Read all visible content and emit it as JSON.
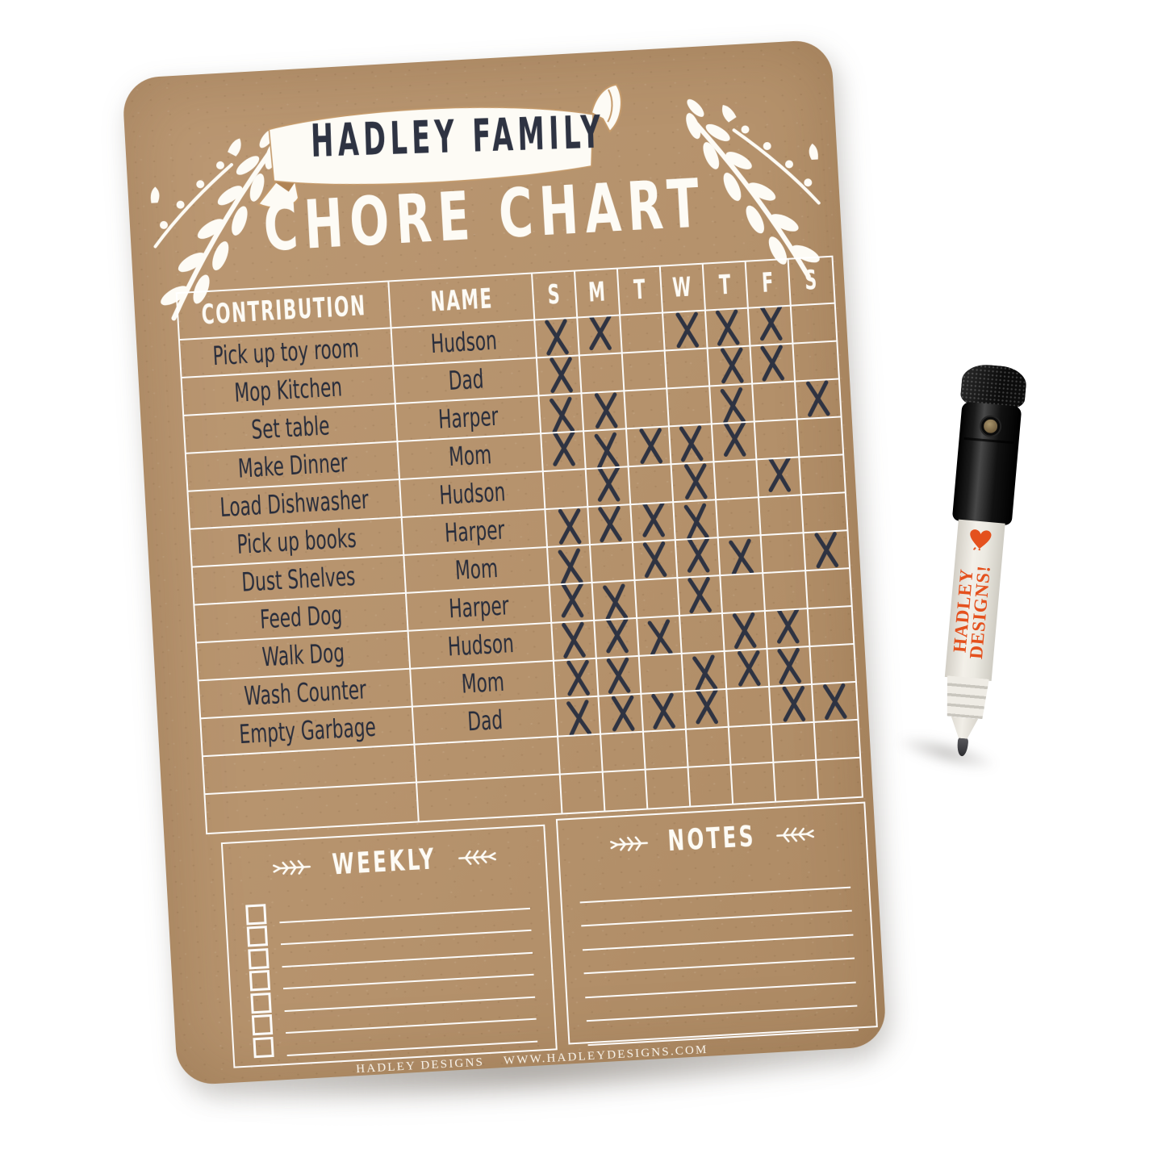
{
  "banner": {
    "family_name": "HADLEY FAMILY"
  },
  "title": "CHORE CHART",
  "table": {
    "contribution_header": "CONTRIBUTION",
    "name_header": "NAME",
    "day_headers": [
      "S",
      "M",
      "T",
      "W",
      "T",
      "F",
      "S"
    ],
    "rows": [
      {
        "contribution": "Pick up toy room",
        "name": "Hudson",
        "marks": [
          1,
          1,
          0,
          1,
          1,
          1,
          0
        ]
      },
      {
        "contribution": "Mop Kitchen",
        "name": "Dad",
        "marks": [
          1,
          0,
          0,
          0,
          1,
          1,
          0
        ]
      },
      {
        "contribution": "Set table",
        "name": "Harper",
        "marks": [
          1,
          1,
          0,
          0,
          1,
          0,
          1
        ]
      },
      {
        "contribution": "Make Dinner",
        "name": "Mom",
        "marks": [
          1,
          1,
          1,
          1,
          1,
          0,
          0
        ]
      },
      {
        "contribution": "Load Dishwasher",
        "name": "Hudson",
        "marks": [
          0,
          1,
          0,
          1,
          0,
          1,
          0
        ]
      },
      {
        "contribution": "Pick up books",
        "name": "Harper",
        "marks": [
          1,
          1,
          1,
          1,
          0,
          0,
          0
        ]
      },
      {
        "contribution": "Dust Shelves",
        "name": "Mom",
        "marks": [
          1,
          0,
          1,
          1,
          1,
          0,
          1
        ]
      },
      {
        "contribution": "Feed Dog",
        "name": "Harper",
        "marks": [
          1,
          1,
          0,
          1,
          0,
          0,
          0
        ]
      },
      {
        "contribution": "Walk Dog",
        "name": "Hudson",
        "marks": [
          1,
          1,
          1,
          0,
          1,
          1,
          0
        ]
      },
      {
        "contribution": "Wash Counter",
        "name": "Mom",
        "marks": [
          1,
          1,
          0,
          1,
          1,
          1,
          0
        ]
      },
      {
        "contribution": "Empty Garbage",
        "name": "Dad",
        "marks": [
          1,
          1,
          1,
          1,
          0,
          1,
          1
        ]
      },
      {
        "contribution": "",
        "name": "",
        "marks": [
          0,
          0,
          0,
          0,
          0,
          0,
          0
        ]
      },
      {
        "contribution": "",
        "name": "",
        "marks": [
          0,
          0,
          0,
          0,
          0,
          0,
          0
        ]
      }
    ]
  },
  "weekly": {
    "title": "WEEKLY",
    "checkbox_rows": 7
  },
  "notes": {
    "title": "NOTES",
    "lines": 7
  },
  "footer": {
    "brand": "HADLEY DESIGNS",
    "website": "WWW.HADLEYDESIGNS.COM"
  },
  "marker": {
    "brand_line1": "HADLEY",
    "brand_line2": "DESIGNS!"
  },
  "colors": {
    "board_kraft": "#b6936e",
    "grid_line": "#ffffff",
    "x_mark": "#2e3342",
    "banner_text": "#2e3342",
    "marker_accent": "#e4511e"
  }
}
